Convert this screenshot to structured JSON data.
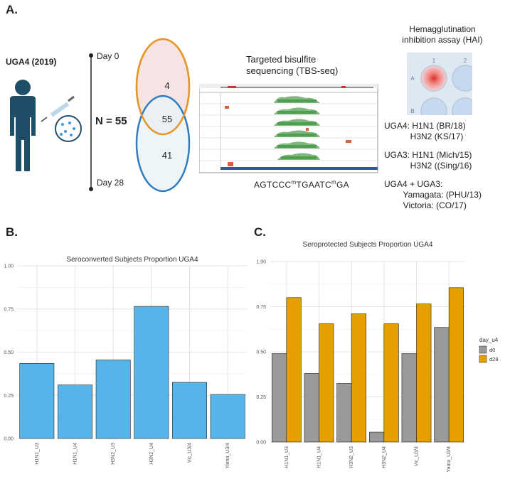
{
  "panelA": {
    "label": "A.",
    "cohort": "UGA4 (2019)",
    "timeline": {
      "top": "Day 0",
      "bottom": "Day 28",
      "n": "N = 55"
    },
    "venn": {
      "day0_only": "4",
      "overlap": "55",
      "day28_only": "41"
    },
    "tbs": {
      "title_line1": "Targeted bisulfite",
      "title_line2": "sequencing (TBS-seq)",
      "seq_parts": [
        "AGTCCC",
        "m",
        "TGAATC",
        "m",
        "GA"
      ]
    },
    "hai": {
      "title_line1": "Hemagglutination",
      "title_line2": "inhibition assay (HAI)",
      "well_labels": [
        "1",
        "2",
        "A",
        "B"
      ],
      "lines": [
        "UGA4: H1N1 (BR/18)",
        "           H3N2 (KS/17)",
        "",
        "UGA3: H1N1 (Mich/15)",
        "           H3N2 ((Sing/16)",
        "",
        "UGA4 + UGA3:",
        "        Yamagata: (PHU/13)",
        "        Victoria: (CO/17)"
      ]
    }
  },
  "panelB": {
    "label": "B."
  },
  "panelC": {
    "label": "C."
  },
  "colors": {
    "orange": "#E8962A",
    "blue": "#2F7DC0",
    "bar_blue": "#56B4E9",
    "bar_gray": "#999999",
    "bar_orange": "#E69F00"
  },
  "chart_data": [
    {
      "type": "bar",
      "title": "Seroconverted Subjects Proportion UGA4",
      "categories": [
        "H1N1_U3",
        "H1N1_U4",
        "H3N2_U3",
        "H3N2_U4",
        "Vic_U3/4",
        "Yama_U3/4"
      ],
      "values": [
        0.435,
        0.31,
        0.455,
        0.765,
        0.325,
        0.255
      ],
      "ylim": [
        0,
        1.0
      ],
      "yticks": [
        "0.00",
        "0.25",
        "0.50",
        "0.75",
        "1.00"
      ],
      "xlabel": "",
      "ylabel": ""
    },
    {
      "type": "bar",
      "title": "Seroprotected Subjects Proportion UGA4",
      "categories": [
        "H1N1_U3",
        "H1N1_U4",
        "H3N2_U3",
        "H3N2_U4",
        "Vic_U3/4",
        "Yama_U3/4"
      ],
      "series": [
        {
          "name": "d0",
          "values": [
            0.49,
            0.38,
            0.325,
            0.055,
            0.49,
            0.635
          ]
        },
        {
          "name": "d28",
          "values": [
            0.8,
            0.655,
            0.71,
            0.655,
            0.765,
            0.855
          ]
        }
      ],
      "ylim": [
        0,
        1.0
      ],
      "yticks": [
        "0.00",
        "0.25",
        "0.50",
        "0.75",
        "1.00"
      ],
      "legend_title": "day_u4",
      "legend_position": "right",
      "xlabel": "",
      "ylabel": ""
    }
  ]
}
